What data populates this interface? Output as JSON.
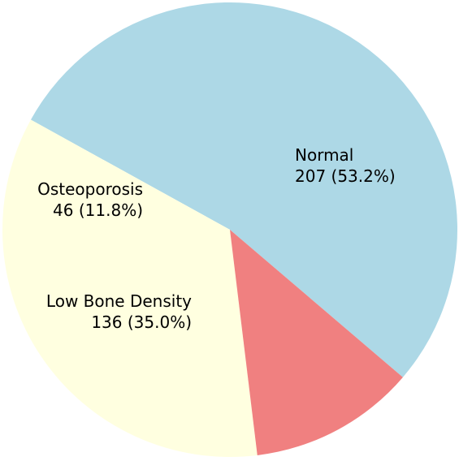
{
  "chart_data": {
    "type": "pie",
    "title": "",
    "slices": [
      {
        "label": "Normal",
        "value": 207,
        "percent_text": "207 (53.2%)",
        "color": "#add8e6"
      },
      {
        "label": "Low Bone Density",
        "value": 136,
        "percent_text": "136 (35.0%)",
        "color": "#ffffe0"
      },
      {
        "label": "Osteoporosis",
        "value": 46,
        "percent_text": "46 (11.8%)",
        "color": "#f08080"
      }
    ],
    "legend": "none"
  }
}
